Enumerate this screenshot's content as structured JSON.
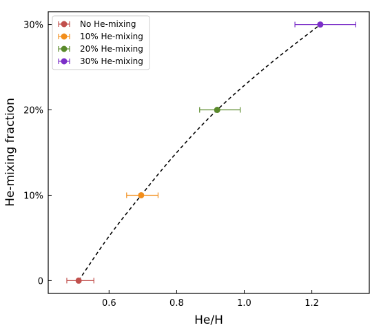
{
  "chart_data": {
    "type": "scatter",
    "title": "",
    "xlabel": "He/H",
    "ylabel": "He-mixing fraction",
    "xlim": [
      0.42,
      1.37
    ],
    "ylim": [
      -1.5,
      31.5
    ],
    "x_ticks": [
      {
        "value": 0.6,
        "label": "0.6"
      },
      {
        "value": 0.8,
        "label": "0.8"
      },
      {
        "value": 1.0,
        "label": "1.0"
      },
      {
        "value": 1.2,
        "label": "1.2"
      }
    ],
    "y_ticks": [
      {
        "value": 0,
        "label": "0"
      },
      {
        "value": 10,
        "label": "10%"
      },
      {
        "value": 20,
        "label": "20%"
      },
      {
        "value": 30,
        "label": "30%"
      }
    ],
    "grid": false,
    "legend": {
      "location": "top-left"
    },
    "series": [
      {
        "name": "No He-mixing",
        "color": "#c1504d",
        "x": 0.51,
        "y": 0,
        "xerr_low": 0.475,
        "xerr_high": 0.555
      },
      {
        "name": "10% He-mixing",
        "color": "#f28e1c",
        "x": 0.695,
        "y": 10,
        "xerr_low": 0.652,
        "xerr_high": 0.745
      },
      {
        "name": "20% He-mixing",
        "color": "#5a8a2b",
        "x": 0.92,
        "y": 20,
        "xerr_low": 0.868,
        "xerr_high": 0.988
      },
      {
        "name": "30% He-mixing",
        "color": "#7b2fc8",
        "x": 1.225,
        "y": 30,
        "xerr_low": 1.15,
        "xerr_high": 1.33
      }
    ],
    "fit_curve": {
      "style": "dashed",
      "color": "#000000",
      "x": [
        0.51,
        0.6,
        0.695,
        0.8,
        0.92,
        1.07,
        1.225
      ],
      "y": [
        0,
        5.2,
        10,
        15.0,
        20,
        25.2,
        30
      ]
    }
  }
}
